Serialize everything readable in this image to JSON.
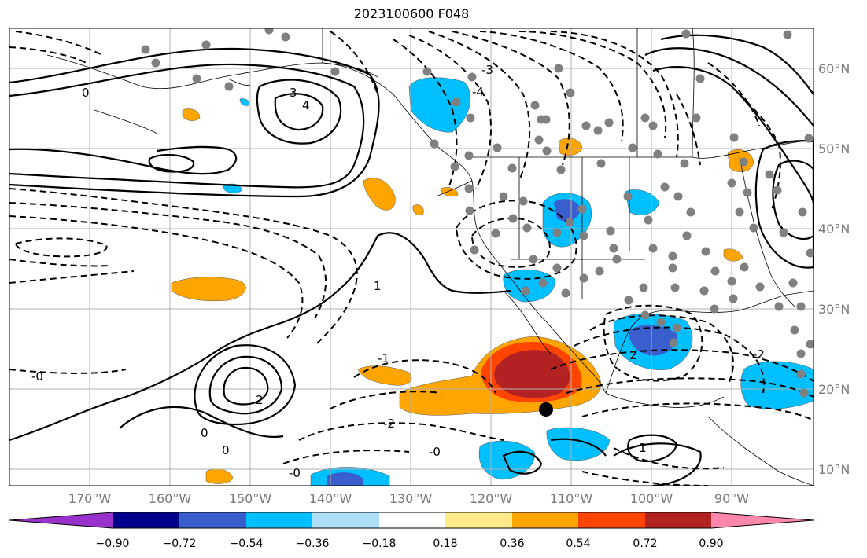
{
  "title": "2023100600 F048",
  "map": {
    "lon_labels": [
      "170°W",
      "160°W",
      "150°W",
      "140°W",
      "130°W",
      "120°W",
      "110°W",
      "100°W",
      "90°W"
    ],
    "lat_labels": [
      "60°N",
      "50°N",
      "40°N",
      "30°N",
      "20°N",
      "10°N"
    ],
    "contour_labels": [
      "0",
      "3",
      "4",
      "-3",
      "-4",
      "1",
      "-1",
      "-2",
      "2",
      "0",
      "-2",
      "-0",
      "1",
      "-0",
      "2",
      "-0",
      "0"
    ]
  },
  "colorbar": {
    "colors": [
      "#9932CC",
      "#00008B",
      "#3A5FCD",
      "#00BFFF",
      "#ADDFF7",
      "#FFFFFF",
      "#FFEB8C",
      "#FFA500",
      "#FF4500",
      "#B22222",
      "#FF88AA"
    ],
    "ticks": [
      "−0.90",
      "−0.72",
      "−0.54",
      "−0.36",
      "−0.18",
      "0.18",
      "0.36",
      "0.54",
      "0.72",
      "0.90"
    ]
  }
}
